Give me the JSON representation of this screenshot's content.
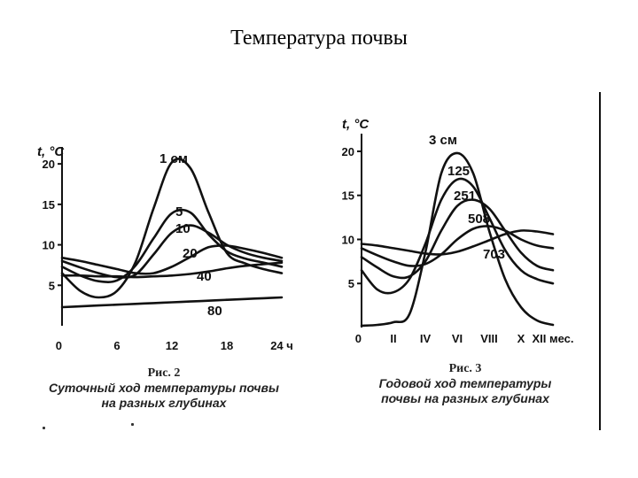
{
  "title": "Температура почвы",
  "colors": {
    "ink": "#111111",
    "background": "#ffffff"
  },
  "chart_data": [
    {
      "type": "line",
      "ylabel": "t, °C",
      "ylim": [
        0,
        21
      ],
      "xlim": [
        0,
        24
      ],
      "x_ticks": [
        "0",
        "6",
        "12",
        "18",
        "24 ч"
      ],
      "x_tick_values": [
        0,
        6,
        12,
        18,
        24
      ],
      "y_ticks": [
        "5",
        "10",
        "15",
        "20"
      ],
      "y_tick_values": [
        5,
        10,
        15,
        20
      ],
      "grid": false,
      "series": [
        {
          "name": "1 см",
          "x": [
            0,
            2,
            4,
            6,
            8,
            10,
            12,
            14,
            16,
            18,
            20,
            22,
            24
          ],
          "y": [
            6.5,
            4.3,
            3.5,
            4.3,
            7.8,
            14.5,
            20.2,
            19.5,
            14.0,
            9.0,
            7.7,
            7.0,
            6.5
          ]
        },
        {
          "name": "5",
          "x": [
            0,
            2,
            4,
            6,
            8,
            10,
            12,
            14,
            16,
            18,
            20,
            22,
            24
          ],
          "y": [
            7.3,
            6.2,
            5.5,
            5.6,
            7.4,
            10.8,
            13.9,
            14.0,
            11.3,
            9.2,
            8.3,
            7.8,
            7.3
          ]
        },
        {
          "name": "10",
          "x": [
            0,
            2,
            4,
            6,
            8,
            10,
            12,
            14,
            16,
            18,
            20,
            22,
            24
          ],
          "y": [
            8.0,
            7.2,
            6.5,
            6.0,
            6.3,
            8.8,
            11.5,
            12.4,
            11.5,
            10.0,
            9.0,
            8.4,
            8.0
          ]
        },
        {
          "name": "20",
          "x": [
            0,
            2,
            4,
            6,
            8,
            10,
            12,
            14,
            16,
            18,
            20,
            22,
            24
          ],
          "y": [
            8.4,
            8.0,
            7.5,
            7.0,
            6.5,
            6.5,
            7.3,
            8.5,
            9.7,
            9.9,
            9.5,
            9.0,
            8.4
          ]
        },
        {
          "name": "40",
          "x": [
            0,
            2,
            4,
            6,
            8,
            10,
            12,
            14,
            16,
            18,
            20,
            22,
            24
          ],
          "y": [
            6.2,
            6.2,
            6.1,
            6.1,
            6.0,
            6.1,
            6.2,
            6.4,
            6.7,
            7.1,
            7.4,
            7.6,
            7.8
          ]
        },
        {
          "name": "80",
          "x": [
            0,
            2,
            4,
            6,
            8,
            10,
            12,
            14,
            16,
            18,
            20,
            22,
            24
          ],
          "y": [
            2.3,
            2.4,
            2.5,
            2.6,
            2.7,
            2.8,
            2.9,
            3.0,
            3.1,
            3.2,
            3.3,
            3.4,
            3.5
          ]
        }
      ],
      "caption_fig": "Рис. 2",
      "caption_text": [
        "Суточный ход температуры почвы",
        "на разных глубинах"
      ]
    },
    {
      "type": "line",
      "ylabel": "t, °C",
      "ylim": [
        0,
        21
      ],
      "xlim": [
        0,
        12
      ],
      "x_ticks": [
        "0",
        "II",
        "IV",
        "VI",
        "VIII",
        "X",
        "XII мес."
      ],
      "x_tick_values": [
        0,
        2,
        4,
        6,
        8,
        10,
        12
      ],
      "y_ticks": [
        "5",
        "10",
        "15",
        "20"
      ],
      "y_tick_values": [
        5,
        10,
        15,
        20
      ],
      "grid": false,
      "series": [
        {
          "name": "3 см",
          "x": [
            0,
            1,
            2,
            3,
            4,
            5,
            6,
            7,
            8,
            9,
            10,
            11,
            12
          ],
          "y": [
            0.2,
            0.3,
            0.6,
            1.5,
            8.5,
            17.5,
            19.8,
            17.5,
            11.0,
            5.5,
            2.3,
            0.8,
            0.3
          ]
        },
        {
          "name": "125",
          "x": [
            0,
            1,
            2,
            3,
            4,
            5,
            6,
            7,
            8,
            9,
            10,
            11,
            12
          ],
          "y": [
            6.5,
            4.3,
            4.0,
            5.5,
            9.5,
            14.5,
            16.8,
            16.0,
            12.5,
            8.8,
            6.5,
            5.5,
            5.0
          ]
        },
        {
          "name": "251",
          "x": [
            0,
            1,
            2,
            3,
            4,
            5,
            6,
            7,
            8,
            9,
            10,
            11,
            12
          ],
          "y": [
            8.0,
            6.8,
            5.8,
            5.8,
            7.5,
            11.0,
            13.8,
            14.5,
            13.5,
            11.0,
            8.5,
            7.0,
            6.5
          ]
        },
        {
          "name": "508",
          "x": [
            0,
            1,
            2,
            3,
            4,
            5,
            6,
            7,
            8,
            9,
            10,
            11,
            12
          ],
          "y": [
            9.0,
            8.2,
            7.5,
            7.0,
            7.2,
            8.3,
            10.0,
            11.2,
            11.5,
            11.0,
            10.0,
            9.3,
            9.0
          ]
        },
        {
          "name": "703",
          "x": [
            0,
            1,
            2,
            3,
            4,
            5,
            6,
            7,
            8,
            9,
            10,
            11,
            12
          ],
          "y": [
            9.5,
            9.3,
            9.0,
            8.7,
            8.4,
            8.3,
            8.6,
            9.2,
            9.9,
            10.6,
            11.0,
            10.9,
            10.6
          ]
        }
      ],
      "caption_fig": "Рис. 3",
      "caption_text": [
        "Годовой ход температуры",
        "почвы на разных глубинах"
      ]
    }
  ]
}
